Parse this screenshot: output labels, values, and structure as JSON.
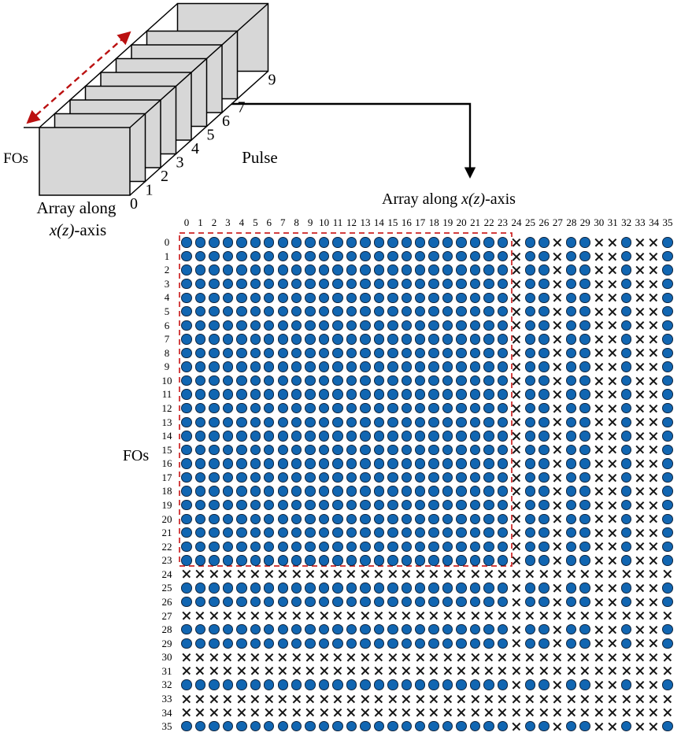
{
  "figure3d": {
    "fos_label": "FOs",
    "pulse_label": "Pulse",
    "axis_label_line1": "Array along",
    "axis_label_line2_italic": "x(z)",
    "axis_label_line2_suffix": "-axis",
    "pulse_ticks": [
      "0",
      "1",
      "2",
      "3",
      "4",
      "5",
      "6",
      "7",
      "9"
    ]
  },
  "grid": {
    "title_prefix": "Array along ",
    "title_italic": "x(z)",
    "title_suffix": "-axis",
    "ylabel": "FOs"
  },
  "chart_data": {
    "type": "heatmap",
    "title": "Array along x(z)-axis",
    "xlabel": "Array along x(z)-axis",
    "ylabel": "FOs",
    "rows": 36,
    "cols": 36,
    "row_labels": [
      "0",
      "1",
      "2",
      "3",
      "4",
      "5",
      "6",
      "7",
      "8",
      "9",
      "10",
      "11",
      "12",
      "13",
      "14",
      "15",
      "16",
      "17",
      "18",
      "19",
      "20",
      "21",
      "22",
      "23",
      "24",
      "25",
      "26",
      "27",
      "28",
      "29",
      "30",
      "31",
      "32",
      "33",
      "34",
      "35"
    ],
    "col_labels": [
      "0",
      "1",
      "2",
      "3",
      "4",
      "5",
      "6",
      "7",
      "8",
      "9",
      "10",
      "11",
      "12",
      "13",
      "14",
      "15",
      "16",
      "17",
      "18",
      "19",
      "20",
      "21",
      "22",
      "23",
      "24",
      "25",
      "26",
      "27",
      "28",
      "29",
      "30",
      "31",
      "32",
      "33",
      "34",
      "35"
    ],
    "active": [
      1,
      1,
      1,
      1,
      1,
      1,
      1,
      1,
      1,
      1,
      1,
      1,
      1,
      1,
      1,
      1,
      1,
      1,
      1,
      1,
      1,
      1,
      1,
      1,
      0,
      1,
      1,
      0,
      1,
      1,
      0,
      0,
      1,
      0,
      0,
      1
    ],
    "inactive_indices": [
      24,
      27,
      30,
      31,
      33,
      34
    ],
    "cell_rule": "cell(r,c) = filled dot if active[r] and active[c], else cross",
    "symbols": {
      "dot": "filled circle",
      "cross": "x mark"
    },
    "dot_color": "#1166b2",
    "cross_color": "#161616",
    "highlight_box": {
      "row_range": [
        0,
        23
      ],
      "col_range": [
        0,
        23
      ],
      "color": "#cc2222",
      "style": "dashed"
    },
    "pulse_axis": {
      "label": "Pulse",
      "ticks_visible": [
        "0",
        "1",
        "2",
        "3",
        "4",
        "5",
        "6",
        "7",
        "9"
      ]
    }
  }
}
